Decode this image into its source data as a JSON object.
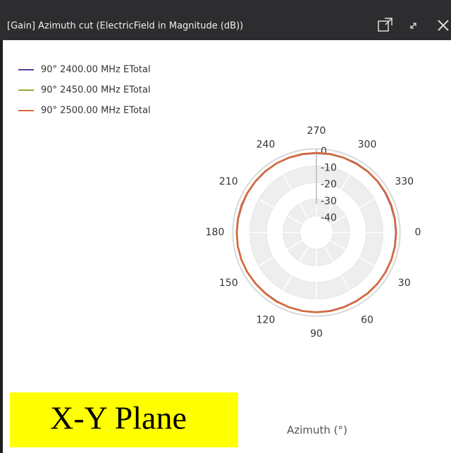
{
  "window": {
    "title": "[Gain] Azimuth cut (ElectricField in Magnitude (dB))"
  },
  "caption": "X-Y Plane",
  "chart_data": {
    "type": "polar",
    "theta_label": "Azimuth (°)",
    "theta": [
      0,
      10,
      20,
      30,
      40,
      50,
      60,
      70,
      80,
      90,
      100,
      110,
      120,
      130,
      140,
      150,
      160,
      170,
      180,
      190,
      200,
      210,
      220,
      230,
      240,
      250,
      260,
      270,
      280,
      290,
      300,
      310,
      320,
      330,
      340,
      350
    ],
    "thetaticks": [
      0,
      30,
      60,
      90,
      120,
      150,
      180,
      210,
      240,
      270,
      300,
      330
    ],
    "theta_direction": "clockwise",
    "rlim": [
      -50,
      0
    ],
    "rticks": [
      0,
      -10,
      -20,
      -30,
      -40
    ],
    "grid": true,
    "legend": "upper left",
    "series": [
      {
        "name": "90° 2400.00 MHz ETotal",
        "color": "#5b3f99",
        "values": [
          -2.2,
          -2.1,
          -2.0,
          -2.0,
          -2.1,
          -2.2,
          -2.3,
          -2.2,
          -2.1,
          -2.0,
          -2.0,
          -2.1,
          -2.2,
          -2.3,
          -2.2,
          -2.1,
          -2.0,
          -2.0,
          -2.1,
          -2.2,
          -2.3,
          -2.2,
          -2.1,
          -2.0,
          -2.0,
          -2.1,
          -2.2,
          -2.3,
          -2.2,
          -2.1,
          -2.0,
          -2.0,
          -2.1,
          -2.2,
          -2.3,
          -2.2
        ]
      },
      {
        "name": "90° 2450.00 MHz ETotal",
        "color": "#9aa83a",
        "values": [
          -2.1,
          -2.0,
          -2.0,
          -2.1,
          -2.1,
          -2.2,
          -2.2,
          -2.1,
          -2.0,
          -2.0,
          -2.0,
          -2.1,
          -2.1,
          -2.2,
          -2.2,
          -2.1,
          -2.0,
          -2.0,
          -2.0,
          -2.1,
          -2.1,
          -2.2,
          -2.2,
          -2.1,
          -2.0,
          -2.0,
          -2.0,
          -2.1,
          -2.1,
          -2.2,
          -2.2,
          -2.1,
          -2.0,
          -2.0,
          -2.0,
          -2.1
        ]
      },
      {
        "name": "90° 2500.00 MHz ETotal",
        "color": "#d9683d",
        "values": [
          -2.0,
          -2.0,
          -2.1,
          -2.1,
          -2.0,
          -2.1,
          -2.2,
          -2.1,
          -2.0,
          -2.0,
          -2.1,
          -2.1,
          -2.0,
          -2.1,
          -2.2,
          -2.1,
          -2.0,
          -2.0,
          -2.1,
          -2.1,
          -2.0,
          -2.1,
          -2.2,
          -2.1,
          -2.0,
          -2.0,
          -2.1,
          -2.1,
          -2.0,
          -2.1,
          -2.2,
          -2.1,
          -2.0,
          -2.0,
          -2.1,
          -2.1
        ]
      }
    ]
  }
}
